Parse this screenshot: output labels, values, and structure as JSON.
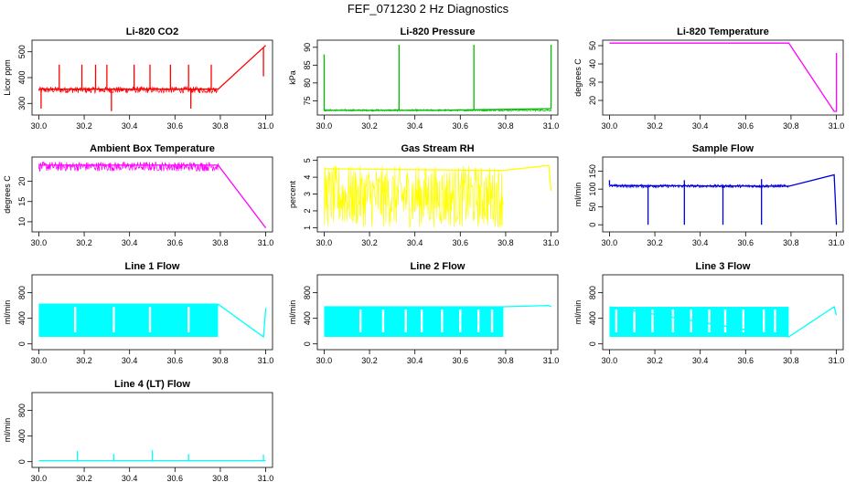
{
  "title": "FEF_071230  2 Hz Diagnostics",
  "chart_data": [
    {
      "type": "line",
      "title": "Li-820 CO2",
      "ylabel": "Licor ppm",
      "color": "#ff0000",
      "xlim": [
        29.97,
        31.03
      ],
      "ylim": [
        255,
        545
      ],
      "xticks": [
        30.0,
        30.2,
        30.4,
        30.6,
        30.8,
        31.0
      ],
      "xtick_labels": [
        "30.0",
        "30.2",
        "30.4",
        "30.6",
        "30.8",
        "31.0"
      ],
      "yticks": [
        300,
        400,
        500
      ],
      "ytick_labels": [
        "300",
        "400",
        "500"
      ],
      "series": [
        {
          "name": "Li-820 CO2",
          "x": [
            30.0,
            30.79,
            31.0
          ],
          "y": [
            355,
            355,
            525
          ]
        }
      ],
      "noise": {
        "x0": 30.0,
        "x1": 30.79,
        "lo": 340,
        "hi": 365
      },
      "spikes": [
        {
          "x": 30.01,
          "y": 280
        },
        {
          "x": 30.09,
          "y": 450
        },
        {
          "x": 30.19,
          "y": 450
        },
        {
          "x": 30.25,
          "y": 450
        },
        {
          "x": 30.3,
          "y": 450
        },
        {
          "x": 30.32,
          "y": 270
        },
        {
          "x": 30.42,
          "y": 450
        },
        {
          "x": 30.49,
          "y": 450
        },
        {
          "x": 30.58,
          "y": 450
        },
        {
          "x": 30.66,
          "y": 450
        },
        {
          "x": 30.67,
          "y": 280
        },
        {
          "x": 30.76,
          "y": 450
        },
        {
          "x": 30.99,
          "y": 405
        }
      ]
    },
    {
      "type": "line",
      "title": "Li-820 Pressure",
      "ylabel": "kPa",
      "color": "#00bb00",
      "xlim": [
        29.97,
        31.03
      ],
      "ylim": [
        71,
        92
      ],
      "xticks": [
        30.0,
        30.2,
        30.4,
        30.6,
        30.8,
        31.0
      ],
      "xtick_labels": [
        "30.0",
        "30.2",
        "30.4",
        "30.6",
        "30.8",
        "31.0"
      ],
      "yticks": [
        75,
        80,
        85,
        90
      ],
      "ytick_labels": [
        "75",
        "80",
        "85",
        "90"
      ],
      "series": [
        {
          "name": "Li-820 Pressure",
          "x": [
            30.0,
            30.5,
            31.0
          ],
          "y": [
            72.3,
            72.3,
            72.8
          ]
        }
      ],
      "noise": {
        "x0": 30.0,
        "x1": 31.0,
        "lo": 72.1,
        "hi": 72.6
      },
      "spikes": [
        {
          "x": 30.0,
          "y": 88
        },
        {
          "x": 30.33,
          "y": 90.7
        },
        {
          "x": 30.66,
          "y": 90.7
        },
        {
          "x": 31.0,
          "y": 90.7
        }
      ]
    },
    {
      "type": "line",
      "title": "Li-820 Temperature",
      "ylabel": "degrees C",
      "color": "#ff00ff",
      "xlim": [
        29.97,
        31.03
      ],
      "ylim": [
        12,
        53
      ],
      "xticks": [
        30.0,
        30.2,
        30.4,
        30.6,
        30.8,
        31.0
      ],
      "xtick_labels": [
        "30.0",
        "30.2",
        "30.4",
        "30.6",
        "30.8",
        "31.0"
      ],
      "yticks": [
        20,
        30,
        40,
        50
      ],
      "ytick_labels": [
        "20",
        "30",
        "40",
        "50"
      ],
      "series": [
        {
          "name": "Li-820 Temperature",
          "x": [
            30.0,
            30.79,
            30.99,
            31.0,
            31.0
          ],
          "y": [
            51.4,
            51.4,
            14,
            14,
            46
          ]
        }
      ],
      "noise": null,
      "spikes": []
    },
    {
      "type": "line",
      "title": "Ambient Box Temperature",
      "ylabel": "degrees C",
      "color": "#ff00ff",
      "xlim": [
        29.97,
        31.03
      ],
      "ylim": [
        7.5,
        26
      ],
      "xticks": [
        30.0,
        30.2,
        30.4,
        30.6,
        30.8,
        31.0
      ],
      "xtick_labels": [
        "30.0",
        "30.2",
        "30.4",
        "30.6",
        "30.8",
        "31.0"
      ],
      "yticks": [
        10,
        15,
        20
      ],
      "ytick_labels": [
        "10",
        "15",
        "20"
      ],
      "series": [
        {
          "name": "Ambient Box Temperature",
          "x": [
            30.0,
            30.79,
            31.0
          ],
          "y": [
            24,
            24,
            8.5
          ]
        }
      ],
      "noise": {
        "x0": 30.0,
        "x1": 30.79,
        "lo": 22.5,
        "hi": 24.8
      },
      "spikes": []
    },
    {
      "type": "line",
      "title": "Gas Stream RH",
      "ylabel": "percent",
      "color": "#ffff00",
      "xlim": [
        29.97,
        31.03
      ],
      "ylim": [
        0.75,
        5.2
      ],
      "xticks": [
        30.0,
        30.2,
        30.4,
        30.6,
        30.8,
        31.0
      ],
      "xtick_labels": [
        "30.0",
        "30.2",
        "30.4",
        "30.6",
        "30.8",
        "31.0"
      ],
      "yticks": [
        1,
        2,
        3,
        4,
        5
      ],
      "ytick_labels": [
        "1",
        "2",
        "3",
        "4",
        "5"
      ],
      "series": [
        {
          "name": "Gas Stream RH",
          "x": [
            30.0,
            30.79,
            30.99,
            31.0
          ],
          "y": [
            4.5,
            4.4,
            4.7,
            3.2
          ]
        }
      ],
      "noise": {
        "x0": 30.0,
        "x1": 30.79,
        "lo": 1.0,
        "hi": 4.7
      },
      "spikes": []
    },
    {
      "type": "line",
      "title": "Sample Flow",
      "ylabel": "ml/min",
      "color": "#0000dd",
      "xlim": [
        29.97,
        31.03
      ],
      "ylim": [
        -20,
        190
      ],
      "xticks": [
        30.0,
        30.2,
        30.4,
        30.6,
        30.8,
        31.0
      ],
      "xtick_labels": [
        "30.0",
        "30.2",
        "30.4",
        "30.6",
        "30.8",
        "31.0"
      ],
      "yticks": [
        0,
        50,
        100,
        150
      ],
      "ytick_labels": [
        "0",
        "50",
        "100",
        "150"
      ],
      "series": [
        {
          "name": "Sample Flow",
          "x": [
            30.0,
            30.79,
            30.99,
            31.0
          ],
          "y": [
            110,
            108,
            140,
            0
          ]
        }
      ],
      "noise": {
        "x0": 30.0,
        "x1": 30.79,
        "lo": 104,
        "hi": 113
      },
      "spikes": [
        {
          "x": 30.0,
          "y": 125
        },
        {
          "x": 30.17,
          "y": 0
        },
        {
          "x": 30.33,
          "y": 0
        },
        {
          "x": 30.33,
          "y": 125
        },
        {
          "x": 30.5,
          "y": 0
        },
        {
          "x": 30.67,
          "y": 0
        },
        {
          "x": 30.67,
          "y": 128
        }
      ]
    },
    {
      "type": "line",
      "title": "Line 1 Flow",
      "ylabel": "ml/min",
      "color": "#00ffff",
      "xlim": [
        29.97,
        31.03
      ],
      "ylim": [
        -90,
        1080
      ],
      "xticks": [
        30.0,
        30.2,
        30.4,
        30.6,
        30.8,
        31.0
      ],
      "xtick_labels": [
        "30.0",
        "30.2",
        "30.4",
        "30.6",
        "30.8",
        "31.0"
      ],
      "yticks": [
        0,
        400,
        800
      ],
      "ytick_labels": [
        "0",
        "400",
        "800"
      ],
      "series": [
        {
          "name": "Line 1 Flow",
          "x": [
            30.0,
            30.79,
            30.99,
            31.0
          ],
          "y": [
            620,
            620,
            110,
            560
          ]
        }
      ],
      "band": {
        "x0": 30.0,
        "x1": 30.79,
        "lo": 110,
        "hi": 620
      },
      "gaps": [
        30.16,
        30.33,
        30.49,
        30.66
      ],
      "noise": null,
      "spikes": []
    },
    {
      "type": "line",
      "title": "Line 2 Flow",
      "ylabel": "ml/min",
      "color": "#00ffff",
      "xlim": [
        29.97,
        31.03
      ],
      "ylim": [
        -90,
        1080
      ],
      "xticks": [
        30.0,
        30.2,
        30.4,
        30.6,
        30.8,
        31.0
      ],
      "xtick_labels": [
        "30.0",
        "30.2",
        "30.4",
        "30.6",
        "30.8",
        "31.0"
      ],
      "yticks": [
        0,
        400,
        800
      ],
      "ytick_labels": [
        "0",
        "400",
        "800"
      ],
      "series": [
        {
          "name": "Line 2 Flow",
          "x": [
            30.0,
            30.79,
            30.99,
            31.0
          ],
          "y": [
            580,
            580,
            600,
            580
          ]
        }
      ],
      "band": {
        "x0": 30.0,
        "x1": 30.79,
        "lo": 110,
        "hi": 580
      },
      "gaps": [
        30.16,
        30.26,
        30.36,
        30.43,
        30.52,
        30.6,
        30.68,
        30.74
      ],
      "noise": null,
      "spikes": []
    },
    {
      "type": "line",
      "title": "Line 3 Flow",
      "ylabel": "ml/min",
      "color": "#00ffff",
      "xlim": [
        29.97,
        31.03
      ],
      "ylim": [
        -90,
        1080
      ],
      "xticks": [
        30.0,
        30.2,
        30.4,
        30.6,
        30.8,
        31.0
      ],
      "xtick_labels": [
        "30.0",
        "30.2",
        "30.4",
        "30.6",
        "30.8",
        "31.0"
      ],
      "yticks": [
        0,
        400,
        800
      ],
      "ytick_labels": [
        "0",
        "400",
        "800"
      ],
      "series": [
        {
          "name": "Line 3 Flow",
          "x": [
            30.0,
            30.79,
            30.99,
            31.0
          ],
          "y": [
            580,
            110,
            580,
            450
          ]
        }
      ],
      "band": {
        "x0": 30.0,
        "x1": 30.79,
        "lo": 110,
        "hi": 580
      },
      "gaps": [
        30.03,
        30.11,
        30.19,
        30.28,
        30.36,
        30.44,
        30.51,
        30.59,
        30.68,
        30.73
      ],
      "noise": null,
      "spikes": []
    },
    {
      "type": "line",
      "title": "Line 4 (LT) Flow",
      "ylabel": "ml/min",
      "color": "#00ffff",
      "xlim": [
        29.97,
        31.03
      ],
      "ylim": [
        -90,
        1080
      ],
      "xticks": [
        30.0,
        30.2,
        30.4,
        30.6,
        30.8,
        31.0
      ],
      "xtick_labels": [
        "30.0",
        "30.2",
        "30.4",
        "30.6",
        "30.8",
        "31.0"
      ],
      "yticks": [
        0,
        400,
        800
      ],
      "ytick_labels": [
        "0",
        "400",
        "800"
      ],
      "series": [
        {
          "name": "Line 4 (LT) Flow",
          "x": [
            30.0,
            31.0
          ],
          "y": [
            15,
            15
          ]
        }
      ],
      "noise": null,
      "spikes": [
        {
          "x": 30.17,
          "y": 170
        },
        {
          "x": 30.33,
          "y": 120
        },
        {
          "x": 30.5,
          "y": 180
        },
        {
          "x": 30.66,
          "y": 120
        },
        {
          "x": 30.99,
          "y": 110
        }
      ]
    }
  ]
}
